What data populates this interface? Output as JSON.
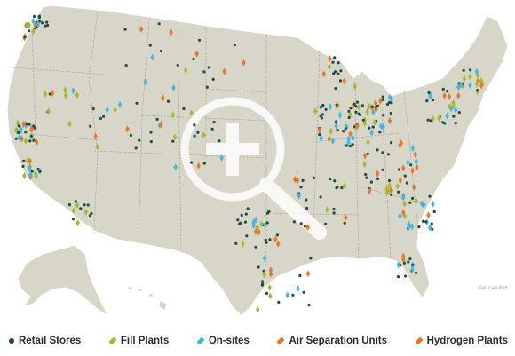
{
  "copyright": "©2017 CALIPER",
  "colors": {
    "retail_stores": "#1e4b45",
    "fill_plants": "#a6b936",
    "on_sites": "#42b7df",
    "air_separation_units": "#e5782a",
    "hydrogen_plants": "#e5782a",
    "land": "#d8d6c8",
    "border": "#9c9a8c"
  },
  "legend": [
    {
      "key": "retail_stores",
      "label": "Retail Stores",
      "shape": "dot"
    },
    {
      "key": "fill_plants",
      "label": "Fill Plants",
      "shape": "diamond"
    },
    {
      "key": "on_sites",
      "label": "On-sites",
      "shape": "diamond"
    },
    {
      "key": "air_separation_units",
      "label": "Air Separation Units",
      "shape": "diamond"
    },
    {
      "key": "hydrogen_plants",
      "label": "Hydrogen Plants",
      "shape": "diamond"
    }
  ],
  "zoom_icon": "magnifier-plus-icon"
}
